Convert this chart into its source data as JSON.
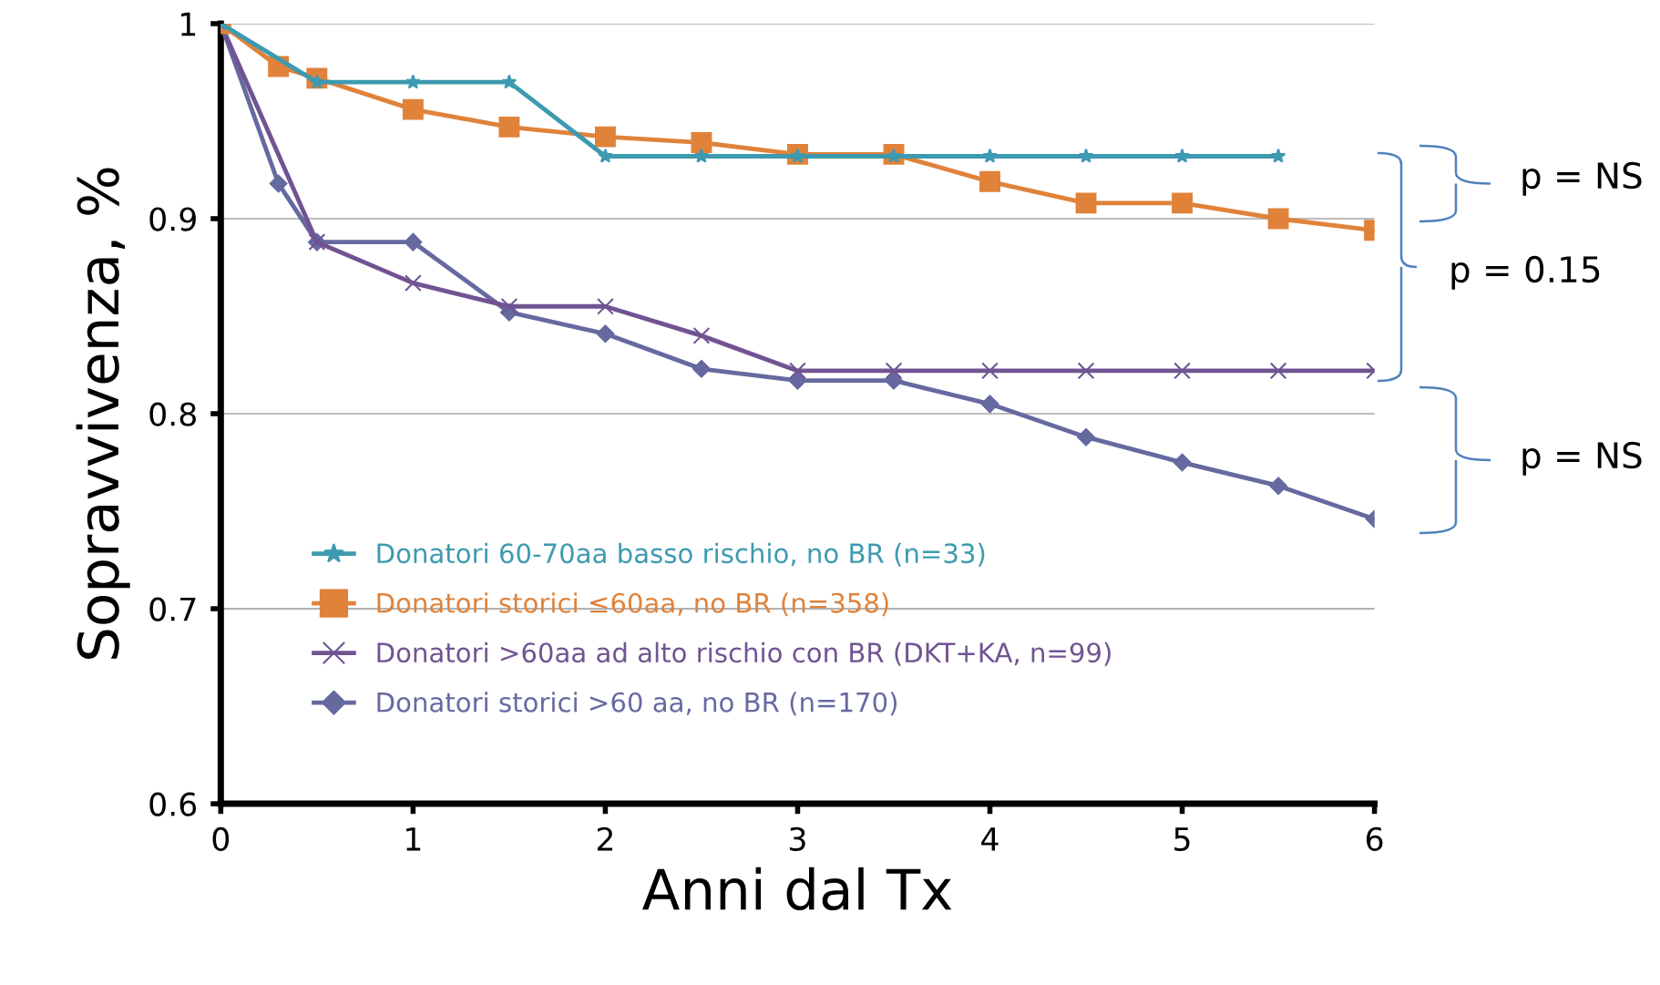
{
  "chart_data": {
    "type": "line",
    "xlabel": "Anni dal Tx",
    "ylabel": "Sopravvivenza, %",
    "xlim": [
      0,
      6
    ],
    "ylim": [
      0.6,
      1
    ],
    "xticks": [
      0,
      1,
      2,
      3,
      4,
      5,
      6
    ],
    "yticks": [
      0.6,
      0.7,
      0.8,
      0.9,
      1
    ],
    "grid": "y",
    "legend": "bottom left",
    "series": [
      {
        "name": "Donatori 60-70aa basso rischio, no BR (n=33)",
        "color": "#3d9ab0",
        "marker": "star",
        "x": [
          0,
          0.5,
          1,
          1.5,
          2,
          2.5,
          3,
          3.5,
          4,
          4.5,
          5,
          5.5
        ],
        "values": [
          1,
          0.97,
          0.97,
          0.97,
          0.932,
          0.932,
          0.932,
          0.932,
          0.932,
          0.932,
          0.932,
          0.932
        ]
      },
      {
        "name": "Donatori storici ≤60aa, no BR (n=358)",
        "color": "#e0823a",
        "marker": "square",
        "x": [
          0,
          0.3,
          0.5,
          1,
          1.5,
          2,
          2.5,
          3,
          3.5,
          4,
          4.5,
          5,
          5.5,
          6
        ],
        "values": [
          1,
          0.978,
          0.972,
          0.956,
          0.947,
          0.942,
          0.939,
          0.933,
          0.933,
          0.919,
          0.908,
          0.908,
          0.9,
          0.894
        ]
      },
      {
        "name": "Donatori >60aa ad alto rischio con BR (DKT+KA, n=99)",
        "color": "#715393",
        "marker": "cross",
        "x": [
          0,
          0.5,
          1,
          1.5,
          2,
          2.5,
          3,
          3.5,
          4,
          4.5,
          5,
          5.5,
          6
        ],
        "values": [
          1,
          0.888,
          0.867,
          0.855,
          0.855,
          0.84,
          0.822,
          0.822,
          0.822,
          0.822,
          0.822,
          0.822,
          0.822
        ]
      },
      {
        "name": "Donatori storici >60 aa, no BR (n=170)",
        "color": "#6669a0",
        "marker": "diamond",
        "x": [
          0,
          0.3,
          0.5,
          1,
          1.5,
          2,
          2.5,
          3,
          3.5,
          4,
          4.5,
          5,
          5.5,
          6
        ],
        "values": [
          1,
          0.918,
          0.888,
          0.888,
          0.852,
          0.841,
          0.823,
          0.817,
          0.817,
          0.805,
          0.788,
          0.775,
          0.763,
          0.746
        ]
      }
    ],
    "annotations": [
      "p = NS",
      "p = 0.15",
      "p = NS"
    ]
  }
}
